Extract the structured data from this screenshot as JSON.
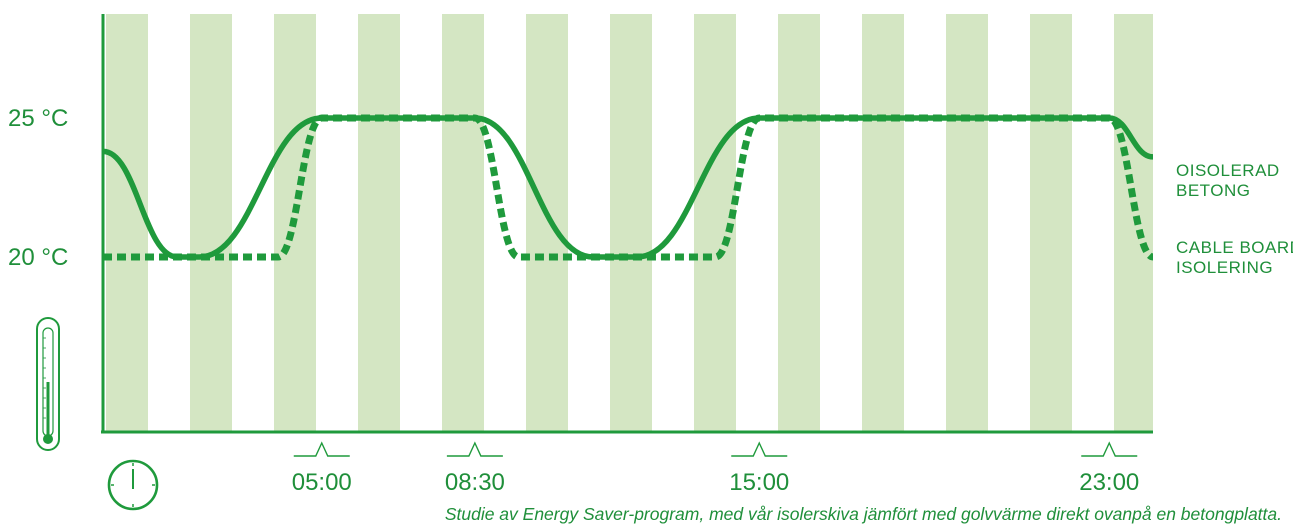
{
  "colors": {
    "accent": "#1f9a3c",
    "stripe": "#d4e6c3"
  },
  "icons": {
    "thermometer": "thermometer-icon",
    "clock": "clock-icon"
  },
  "chart_data": {
    "type": "line",
    "xlim": [
      0,
      24
    ],
    "ylim": [
      15,
      28
    ],
    "y_ticks": [
      {
        "value": 25,
        "label": "25 °C"
      },
      {
        "value": 20,
        "label": "20 °C"
      }
    ],
    "x_ticks": [
      {
        "value": 5,
        "label": "05:00"
      },
      {
        "value": 8.5,
        "label": "08:30"
      },
      {
        "value": 15,
        "label": "15:00"
      },
      {
        "value": 23,
        "label": "23:00"
      }
    ],
    "series": [
      {
        "name_lines": [
          "OISOLERAD",
          "BETONG"
        ],
        "style": "solid",
        "points": [
          [
            0,
            23.8
          ],
          [
            1.7,
            20
          ],
          [
            2.2,
            20
          ],
          [
            5,
            25
          ],
          [
            8.5,
            25
          ],
          [
            11.2,
            20
          ],
          [
            12.2,
            20
          ],
          [
            15,
            25
          ],
          [
            23,
            25
          ],
          [
            24,
            23.6
          ]
        ]
      },
      {
        "name_lines": [
          "CABLE  BOARD",
          "ISOLERING"
        ],
        "style": "dotted",
        "points": [
          [
            0,
            20
          ],
          [
            4,
            20
          ],
          [
            5,
            25
          ],
          [
            8.5,
            25
          ],
          [
            9.5,
            20
          ],
          [
            14,
            20
          ],
          [
            15,
            25
          ],
          [
            23,
            25
          ],
          [
            24,
            20
          ]
        ]
      }
    ],
    "grid": "vertical-stripes",
    "caption": "Studie av Energy Saver-program, med vår isolerskiva jämfört med golvvärme direkt ovanpå en betongplatta."
  }
}
